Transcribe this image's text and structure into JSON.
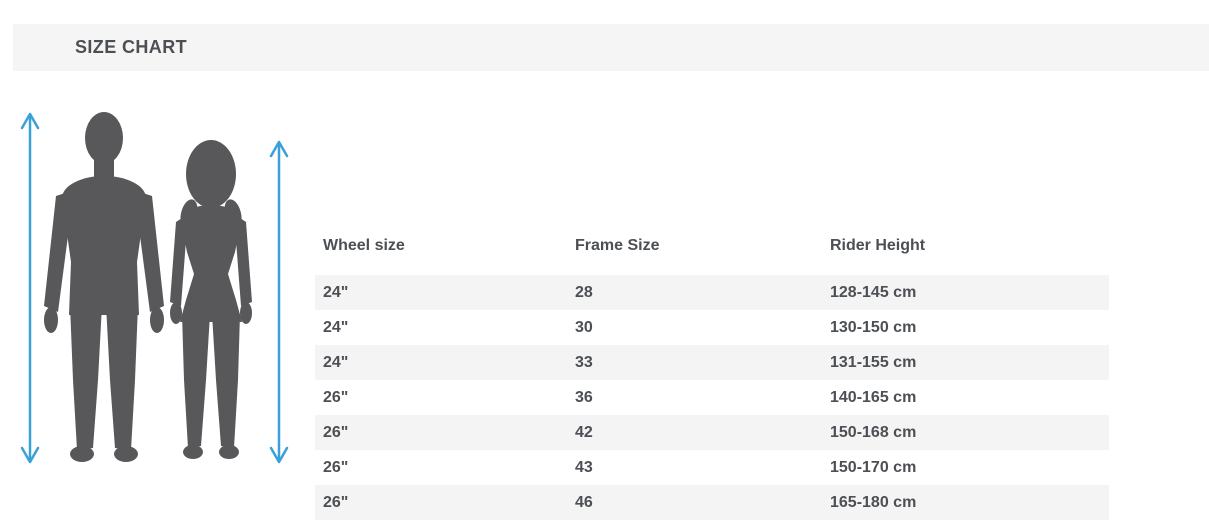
{
  "title": "SIZE CHART",
  "colors": {
    "accent_blue": "#3aa0da",
    "silhouette": "#58585a",
    "row_alt": "#f4f4f4",
    "header_bg": "#f5f5f5",
    "text": "#4c4f54"
  },
  "illustration": {
    "description": "male and female standing silhouettes with vertical double-headed height arrows"
  },
  "table": {
    "columns": [
      "Wheel size",
      "Frame Size",
      "Rider Height"
    ],
    "rows": [
      [
        "24\"",
        "28",
        "128-145 cm"
      ],
      [
        "24\"",
        "30",
        "130-150 cm"
      ],
      [
        "24\"",
        "33",
        "131-155 cm"
      ],
      [
        "26\"",
        "36",
        "140-165 cm"
      ],
      [
        "26\"",
        "42",
        "150-168 cm"
      ],
      [
        "26\"",
        "43",
        "150-170 cm"
      ],
      [
        "26\"",
        "46",
        "165-180 cm"
      ]
    ]
  }
}
